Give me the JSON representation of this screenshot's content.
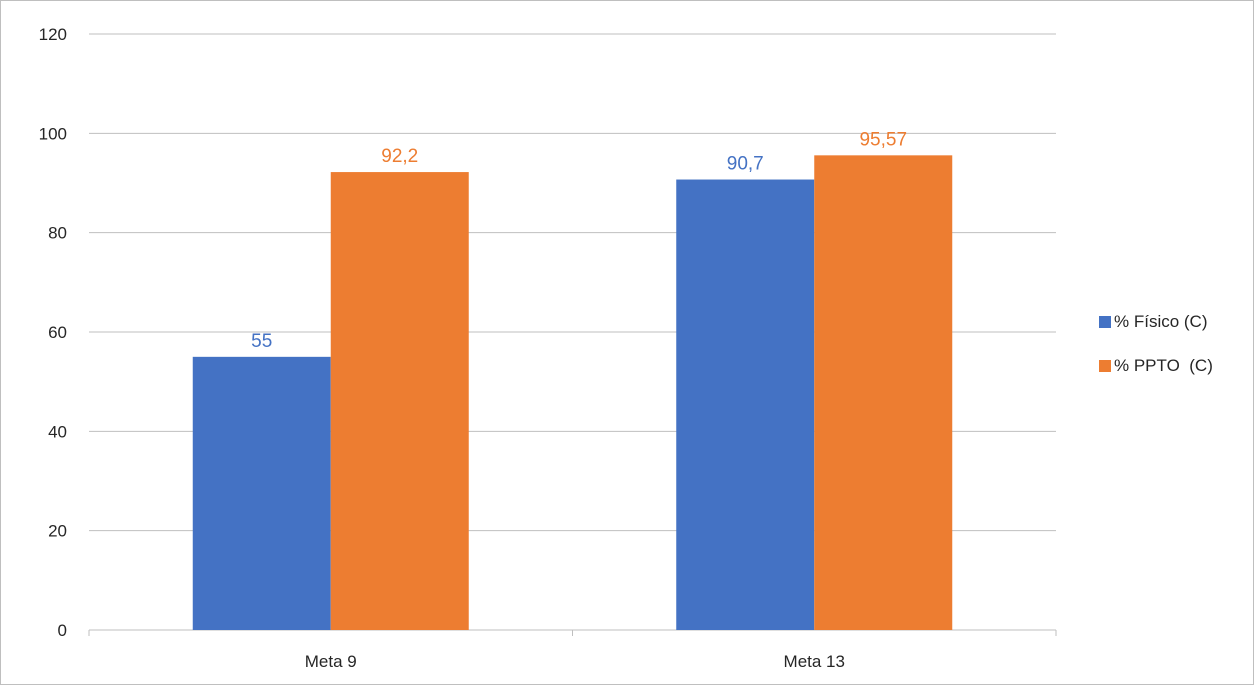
{
  "chart_data": {
    "type": "bar",
    "title": "",
    "xlabel": "",
    "ylabel": "",
    "categories": [
      "Meta 9",
      "Meta 13"
    ],
    "series": [
      {
        "name": "% Físico (C)",
        "color": "#4472C4",
        "values": [
          55,
          90.7
        ],
        "labels": [
          "55",
          "90,7"
        ]
      },
      {
        "name": "% PPTO  (C)",
        "color": "#ED7D31",
        "values": [
          92.2,
          95.57
        ],
        "labels": [
          "92,2",
          "95,57"
        ]
      }
    ],
    "ylim": [
      0,
      120
    ],
    "yticks": [
      0,
      20,
      40,
      60,
      80,
      100,
      120
    ],
    "grid": true,
    "legend_position": "right"
  }
}
